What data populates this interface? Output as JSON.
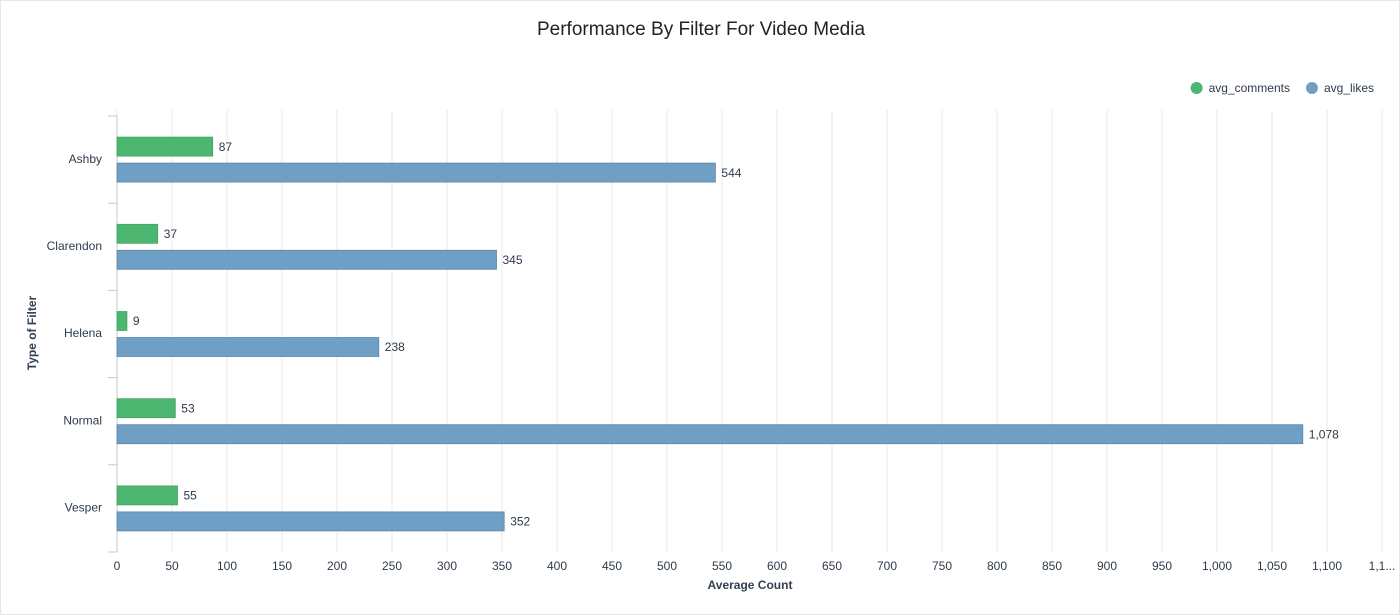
{
  "chart_data": {
    "type": "bar",
    "orientation": "horizontal",
    "title": "Performance By Filter For Video Media",
    "x_label": "Average Count",
    "y_label": "Type of Filter",
    "categories": [
      "Ashby",
      "Clarendon",
      "Helena",
      "Normal",
      "Vesper"
    ],
    "series": [
      {
        "name": "avg_comments",
        "color": "#4db671",
        "values": [
          87,
          37,
          9,
          53,
          55
        ]
      },
      {
        "name": "avg_likes",
        "color": "#6f9fc5",
        "values": [
          544,
          345,
          238,
          1078,
          352
        ],
        "value_labels": [
          "544",
          "345",
          "238",
          "1,078",
          "352"
        ]
      }
    ],
    "xlim": [
      0,
      1150
    ],
    "xticks": [
      0,
      50,
      100,
      150,
      200,
      250,
      300,
      350,
      400,
      450,
      500,
      550,
      600,
      650,
      700,
      750,
      800,
      850,
      900,
      950,
      {
        "value": 1000,
        "label": "1,000"
      },
      {
        "value": 1050,
        "label": "1,050"
      },
      {
        "value": 1100,
        "label": "1,100"
      },
      {
        "value": 1150,
        "label": "1,1..."
      }
    ],
    "grid": true,
    "legend": "top-right"
  }
}
